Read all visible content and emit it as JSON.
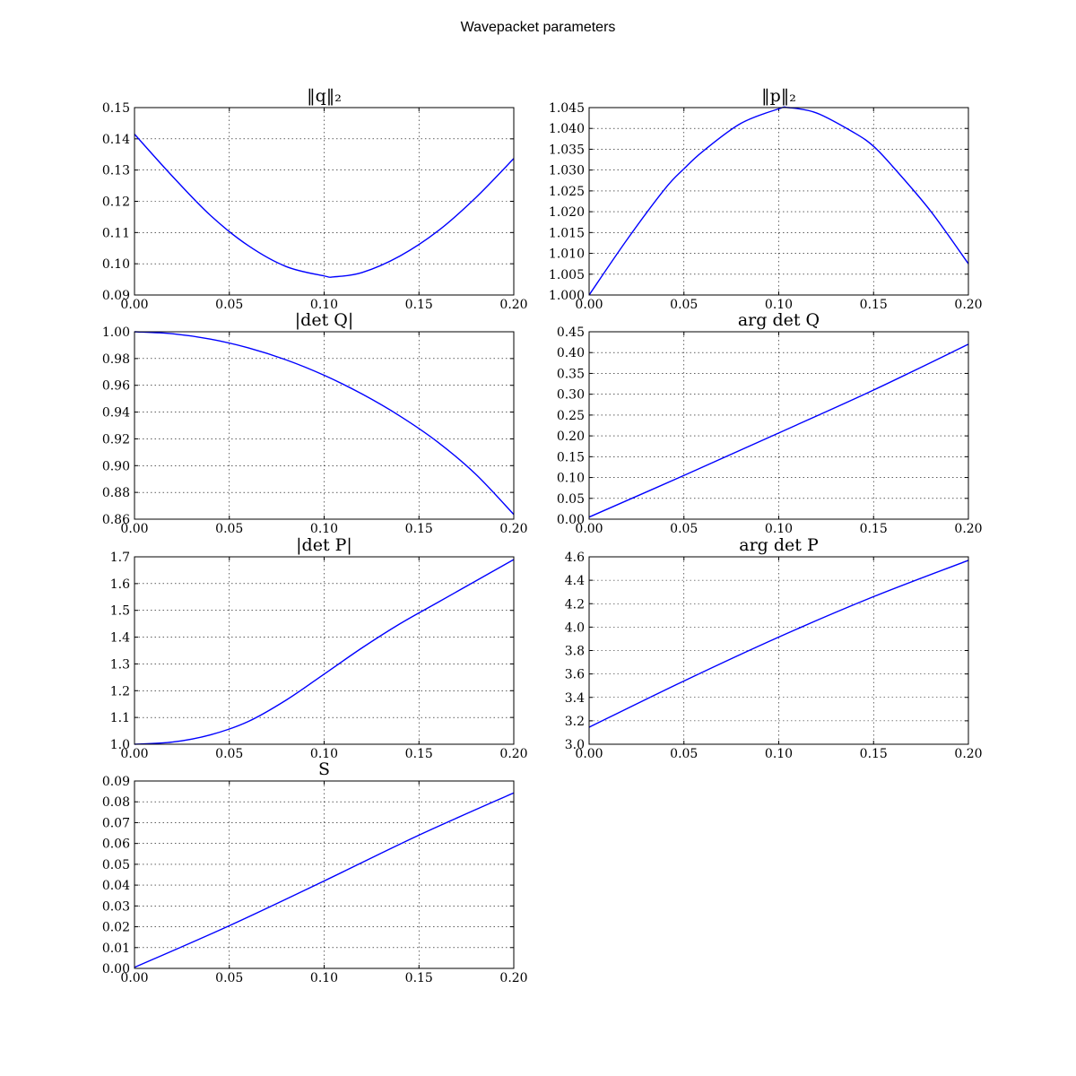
{
  "figure": {
    "title": "Wavepacket parameters"
  },
  "colors": {
    "line": "#0000ff",
    "axes": "#000000",
    "background": "#ffffff"
  },
  "chart_data": [
    {
      "type": "line",
      "title": "‖q‖₂",
      "xlim": [
        0.0,
        0.2
      ],
      "ylim": [
        0.09,
        0.15
      ],
      "xticks": [
        "0.00",
        "0.05",
        "0.10",
        "0.15",
        "0.20"
      ],
      "yticks": [
        "0.09",
        "0.10",
        "0.11",
        "0.12",
        "0.13",
        "0.14",
        "0.15"
      ],
      "grid": true,
      "x": [
        0.0,
        0.02,
        0.04,
        0.06,
        0.08,
        0.1,
        0.105,
        0.12,
        0.14,
        0.16,
        0.18,
        0.2
      ],
      "y": [
        0.1415,
        0.128,
        0.1155,
        0.1058,
        0.0991,
        0.0961,
        0.0958,
        0.0972,
        0.1025,
        0.1105,
        0.1212,
        0.1337
      ]
    },
    {
      "type": "line",
      "title": "‖p‖₂",
      "xlim": [
        0.0,
        0.2
      ],
      "ylim": [
        1.0,
        1.045
      ],
      "xticks": [
        "0.00",
        "0.05",
        "0.10",
        "0.15",
        "0.20"
      ],
      "yticks": [
        "1.000",
        "1.005",
        "1.010",
        "1.015",
        "1.020",
        "1.025",
        "1.030",
        "1.035",
        "1.040",
        "1.045"
      ],
      "grid": true,
      "x": [
        0.0,
        0.02,
        0.04,
        0.05,
        0.06,
        0.08,
        0.1,
        0.105,
        0.12,
        0.14,
        0.15,
        0.16,
        0.18,
        0.2
      ],
      "y": [
        1.0,
        1.0133,
        1.0255,
        1.0303,
        1.0345,
        1.0412,
        1.0447,
        1.045,
        1.0437,
        1.0389,
        1.0357,
        1.0309,
        1.0202,
        1.0075
      ]
    },
    {
      "type": "line",
      "title": "|det Q|",
      "xlim": [
        0.0,
        0.2
      ],
      "ylim": [
        0.86,
        1.0
      ],
      "xticks": [
        "0.00",
        "0.05",
        "0.10",
        "0.15",
        "0.20"
      ],
      "yticks": [
        "0.86",
        "0.88",
        "0.90",
        "0.92",
        "0.94",
        "0.96",
        "0.98",
        "1.00"
      ],
      "grid": true,
      "x": [
        0.0,
        0.02,
        0.04,
        0.06,
        0.08,
        0.1,
        0.12,
        0.14,
        0.16,
        0.18,
        0.2
      ],
      "y": [
        1.0,
        0.9985,
        0.9945,
        0.988,
        0.979,
        0.9675,
        0.9535,
        0.937,
        0.9175,
        0.8935,
        0.8635
      ]
    },
    {
      "type": "line",
      "title": "arg det Q",
      "xlim": [
        0.0,
        0.2
      ],
      "ylim": [
        0.0,
        0.45
      ],
      "xticks": [
        "0.00",
        "0.05",
        "0.10",
        "0.15",
        "0.20"
      ],
      "yticks": [
        "0.00",
        "0.05",
        "0.10",
        "0.15",
        "0.20",
        "0.25",
        "0.30",
        "0.35",
        "0.40",
        "0.45"
      ],
      "grid": true,
      "x": [
        0.0,
        0.05,
        0.1,
        0.15,
        0.2
      ],
      "y": [
        0.005,
        0.105,
        0.207,
        0.31,
        0.42
      ]
    },
    {
      "type": "line",
      "title": "|det P|",
      "xlim": [
        0.0,
        0.2
      ],
      "ylim": [
        1.0,
        1.7
      ],
      "xticks": [
        "0.00",
        "0.05",
        "0.10",
        "0.15",
        "0.20"
      ],
      "yticks": [
        "1.0",
        "1.1",
        "1.2",
        "1.3",
        "1.4",
        "1.5",
        "1.6",
        "1.7"
      ],
      "grid": true,
      "x": [
        0.0,
        0.02,
        0.04,
        0.06,
        0.08,
        0.1,
        0.12,
        0.14,
        0.16,
        0.18,
        0.2
      ],
      "y": [
        1.0,
        1.008,
        1.035,
        1.085,
        1.165,
        1.262,
        1.36,
        1.45,
        1.53,
        1.61,
        1.69
      ]
    },
    {
      "type": "line",
      "title": "arg det P",
      "xlim": [
        0.0,
        0.2
      ],
      "ylim": [
        3.0,
        4.6
      ],
      "xticks": [
        "0.00",
        "0.05",
        "0.10",
        "0.15",
        "0.20"
      ],
      "yticks": [
        "3.0",
        "3.2",
        "3.4",
        "3.6",
        "3.8",
        "4.0",
        "4.2",
        "4.4",
        "4.6"
      ],
      "grid": true,
      "x": [
        0.0,
        0.05,
        0.1,
        0.15,
        0.2
      ],
      "y": [
        3.145,
        3.54,
        3.915,
        4.26,
        4.57
      ]
    },
    {
      "type": "line",
      "title": "S",
      "xlim": [
        0.0,
        0.2
      ],
      "ylim": [
        0.0,
        0.09
      ],
      "xticks": [
        "0.00",
        "0.05",
        "0.10",
        "0.15",
        "0.20"
      ],
      "yticks": [
        "0.00",
        "0.01",
        "0.02",
        "0.03",
        "0.04",
        "0.05",
        "0.06",
        "0.07",
        "0.08",
        "0.09"
      ],
      "grid": true,
      "x": [
        0.0,
        0.05,
        0.1,
        0.15,
        0.2
      ],
      "y": [
        0.0005,
        0.0205,
        0.042,
        0.064,
        0.0843
      ]
    }
  ]
}
